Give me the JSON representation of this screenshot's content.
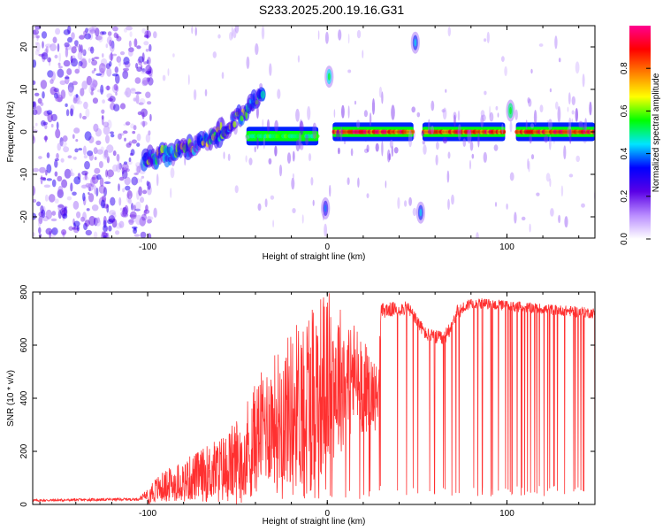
{
  "title": "S233.2025.200.19.16.G31",
  "chart_data": [
    {
      "type": "heatmap",
      "title": "S233.2025.200.19.16.G31",
      "xlabel": "Height of straight line (km)",
      "ylabel": "Frequency (Hz)",
      "xlim": [
        -164,
        149
      ],
      "ylim": [
        -25,
        25
      ],
      "x_ticks": [
        "-100",
        "0",
        "100"
      ],
      "y_ticks": [
        "-20",
        "-10",
        "0",
        "10",
        "20"
      ],
      "colorbar": {
        "label": "Normalized spectral amplitude",
        "range": [
          0,
          1
        ],
        "ticks": [
          "0.0",
          "0.2",
          "0.4",
          "0.6",
          "0.8"
        ],
        "colors": [
          "#ffffff",
          "#b98cff",
          "#5a00e6",
          "#0000ff",
          "#00e5ff",
          "#00ff00",
          "#ffff00",
          "#ff8000",
          "#ff0000",
          "#ff0090"
        ]
      },
      "features": [
        {
          "kind": "noise_cloud",
          "x_range": [
            -164,
            -98
          ],
          "f_range": [
            -25,
            25
          ],
          "amplitude": 0.15
        },
        {
          "kind": "rising_band",
          "points": [
            [
              -102,
              -6
            ],
            [
              -85,
              -5
            ],
            [
              -70,
              -3
            ],
            [
              -55,
              1
            ],
            [
              -45,
              5
            ],
            [
              -35,
              10
            ]
          ],
          "amplitude": 0.5
        },
        {
          "kind": "band",
          "x_range": [
            -45,
            -5
          ],
          "f": -1,
          "amplitude": 0.6
        },
        {
          "kind": "band",
          "x_range": [
            3,
            48
          ],
          "f": 0,
          "amplitude": 1.0
        },
        {
          "kind": "band",
          "x_range": [
            53,
            99
          ],
          "f": 0,
          "amplitude": 1.0
        },
        {
          "kind": "band",
          "x_range": [
            105,
            149
          ],
          "f": 0,
          "amplitude": 1.0
        },
        {
          "kind": "blob",
          "x": 1,
          "f": 13,
          "amplitude": 0.45
        },
        {
          "kind": "blob",
          "x": -1,
          "f": -18,
          "amplitude": 0.3
        },
        {
          "kind": "blob",
          "x": 49,
          "f": 21,
          "amplitude": 0.35
        },
        {
          "kind": "blob",
          "x": 52,
          "f": -19,
          "amplitude": 0.35
        },
        {
          "kind": "blob",
          "x": 102,
          "f": 5,
          "amplitude": 0.5
        }
      ]
    },
    {
      "type": "line",
      "xlabel": "Height of straight line (km)",
      "ylabel": "SNR (10 * v/v)",
      "xlim": [
        -164,
        149
      ],
      "ylim": [
        0,
        800
      ],
      "x_ticks": [
        "-100",
        "0",
        "100"
      ],
      "y_ticks": [
        "0",
        "200",
        "400",
        "600",
        "800"
      ],
      "color": "#ff3030",
      "envelope": [
        {
          "x": -164,
          "base": 15,
          "amp": 10
        },
        {
          "x": -105,
          "base": 20,
          "amp": 10
        },
        {
          "x": -100,
          "base": 40,
          "amp": 40
        },
        {
          "x": -90,
          "base": 70,
          "amp": 60
        },
        {
          "x": -70,
          "base": 110,
          "amp": 100
        },
        {
          "x": -55,
          "base": 140,
          "amp": 140
        },
        {
          "x": -45,
          "base": 200,
          "amp": 200
        },
        {
          "x": -35,
          "base": 300,
          "amp": 220
        },
        {
          "x": -20,
          "base": 360,
          "amp": 300
        },
        {
          "x": -8,
          "base": 420,
          "amp": 380
        },
        {
          "x": 0,
          "base": 470,
          "amp": 340
        },
        {
          "x": 15,
          "base": 480,
          "amp": 220
        },
        {
          "x": 28,
          "base": 400,
          "amp": 120
        },
        {
          "x": 30,
          "base": 730,
          "amp": 60
        },
        {
          "x": 45,
          "base": 740,
          "amp": 50
        },
        {
          "x": 55,
          "base": 640,
          "amp": 50
        },
        {
          "x": 65,
          "base": 620,
          "amp": 60
        },
        {
          "x": 72,
          "base": 720,
          "amp": 60
        },
        {
          "x": 80,
          "base": 760,
          "amp": 40
        },
        {
          "x": 149,
          "base": 720,
          "amp": 40
        }
      ]
    }
  ]
}
